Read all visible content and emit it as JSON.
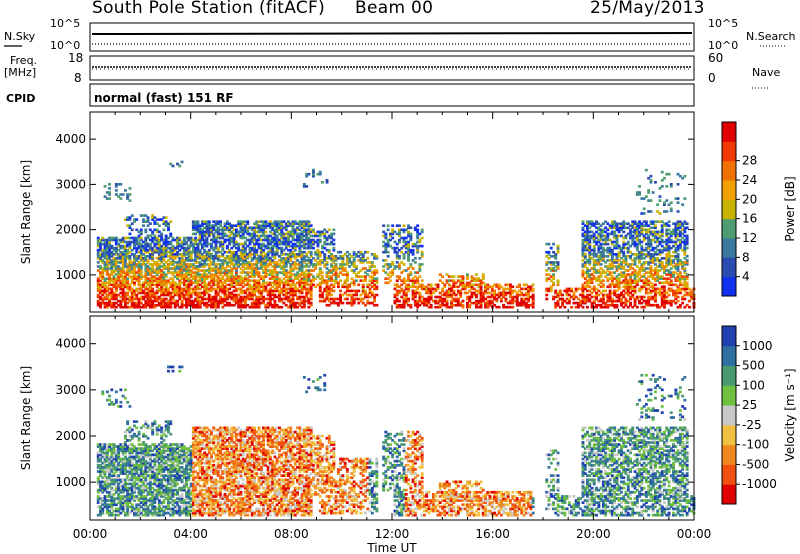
{
  "header": {
    "station": "South Pole Station (fitACF)",
    "beam": "Beam 00",
    "date": "25/May/2013"
  },
  "status": {
    "nsky_label": "N.Sky",
    "nsearch_label": "N.Search",
    "noise_top": "10^5",
    "noise_bottom": "10^0",
    "freq_label": "Freq.",
    "freq_unit": "[MHz]",
    "freq_top": "18",
    "freq_bottom": "8",
    "nave_label": "Nave",
    "nave_top": "60",
    "nave_bottom": "0",
    "cpid_label": "CPID",
    "cpid_text": "normal (fast) 151 RF"
  },
  "chart_data": [
    {
      "type": "heatmap",
      "name": "power",
      "ylabel": "Slant Range [km]",
      "yticks": [
        "1000",
        "2000",
        "3000",
        "4000"
      ],
      "ylim": [
        180,
        4600
      ],
      "xlim": [
        0,
        24
      ],
      "colorbar_label": "Power [dB]",
      "colorbar_ticks": [
        "4",
        "8",
        "12",
        "16",
        "20",
        "24",
        "28"
      ],
      "colorbar_colors": [
        "#1030f0",
        "#2a4cb0",
        "#3a78a0",
        "#4e9c70",
        "#c8b400",
        "#f0a000",
        "#f07000",
        "#f03800",
        "#e00000"
      ]
    },
    {
      "type": "heatmap",
      "name": "velocity",
      "ylabel": "Slant Range [km]",
      "yticks": [
        "1000",
        "2000",
        "3000",
        "4000"
      ],
      "ylim": [
        180,
        4600
      ],
      "xlim": [
        0,
        24
      ],
      "xticks": [
        "00:00",
        "04:00",
        "08:00",
        "12:00",
        "16:00",
        "20:00",
        "00:00"
      ],
      "xlabel": "Time UT",
      "colorbar_label": "Velocity [m s⁻¹]",
      "colorbar_ticks": [
        "1000",
        "500",
        "100",
        "25",
        "-25",
        "-100",
        "-500",
        "-1000"
      ],
      "colorbar_colors": [
        "#2040b0",
        "#3070a0",
        "#4a9a70",
        "#70c040",
        "#c8c8c8",
        "#f0c040",
        "#f08820",
        "#f05010",
        "#e00000"
      ]
    }
  ]
}
